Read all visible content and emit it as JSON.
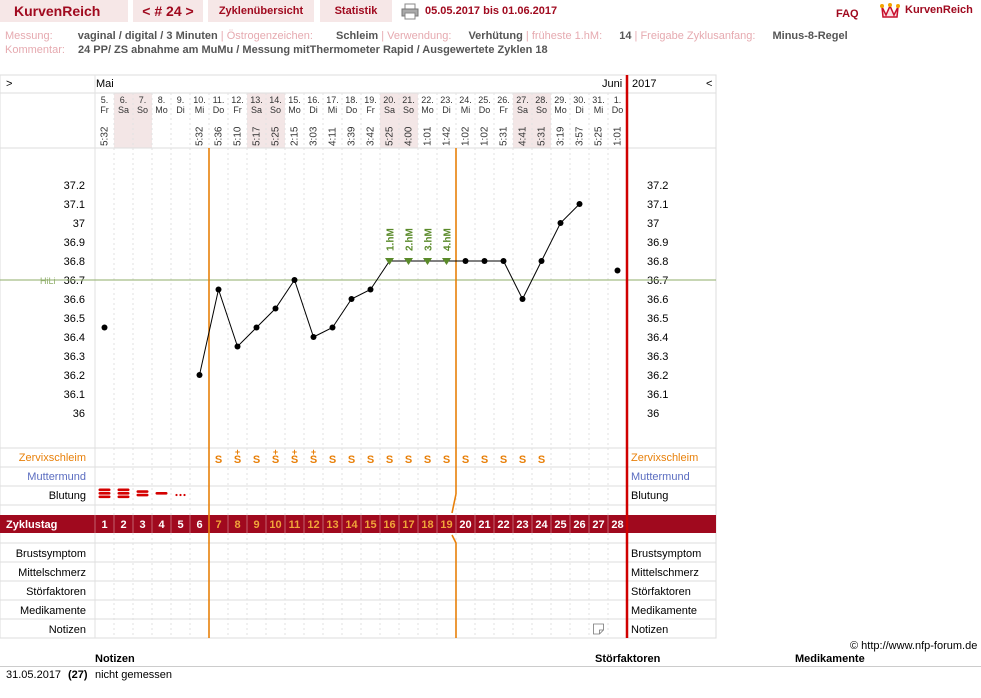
{
  "header": {
    "brand": "KurvenReich",
    "cycle_nav": "< # 24 >",
    "tab_overview": "Zyklenübersicht",
    "tab_stats": "Statistik",
    "date_range": "05.05.2017 bis 01.06.2017",
    "faq": "FAQ",
    "logo_text": "KurvenReich"
  },
  "info": {
    "messung_label": "Messung:",
    "messung_value": "vaginal / digital / 3 Minuten",
    "oestrogen_label": "Östrogenzeichen:",
    "oestrogen_value": "Schleim",
    "verwendung_label": "Verwendung:",
    "verwendung_value": "Verhütung",
    "hm_label": "früheste 1.hM:",
    "hm_value": "14",
    "freigabe_label": "Freigabe Zyklusanfang:",
    "freigabe_value": "Minus-8-Regel",
    "kommentar_label": "Kommentar:",
    "kommentar_value": "24 PP/ ZS abnahme am MuMu / Messung mitThermometer Rapid / Ausgewertete Zyklen 18"
  },
  "chart": {
    "nav_left": ">",
    "nav_right": "<",
    "month_start": "Mai",
    "month_end": "Juni",
    "year": "2017",
    "hili": "HiLi",
    "y_ticks": [
      "37.2",
      "37.1",
      "37",
      "36.9",
      "36.8",
      "36.7",
      "36.6",
      "36.5",
      "36.4",
      "36.3",
      "36.2",
      "36.1",
      "36"
    ],
    "days": [
      {
        "d": "5.",
        "w": "Fr",
        "t": "5:32",
        "we": false
      },
      {
        "d": "6.",
        "w": "Sa",
        "t": "",
        "we": true
      },
      {
        "d": "7.",
        "w": "So",
        "t": "",
        "we": true
      },
      {
        "d": "8.",
        "w": "Mo",
        "t": "",
        "we": false
      },
      {
        "d": "9.",
        "w": "Di",
        "t": "",
        "we": false
      },
      {
        "d": "10.",
        "w": "Mi",
        "t": "5:32",
        "we": false
      },
      {
        "d": "11.",
        "w": "Do",
        "t": "5:36",
        "we": false
      },
      {
        "d": "12.",
        "w": "Fr",
        "t": "5:10",
        "we": false
      },
      {
        "d": "13.",
        "w": "Sa",
        "t": "5:17",
        "we": true
      },
      {
        "d": "14.",
        "w": "So",
        "t": "5:25",
        "we": true
      },
      {
        "d": "15.",
        "w": "Mo",
        "t": "2:15",
        "we": false
      },
      {
        "d": "16.",
        "w": "Di",
        "t": "3:03",
        "we": false
      },
      {
        "d": "17.",
        "w": "Mi",
        "t": "4:11",
        "we": false
      },
      {
        "d": "18.",
        "w": "Do",
        "t": "3:39",
        "we": false
      },
      {
        "d": "19.",
        "w": "Fr",
        "t": "3:42",
        "we": false
      },
      {
        "d": "20.",
        "w": "Sa",
        "t": "5:25",
        "we": true
      },
      {
        "d": "21.",
        "w": "So",
        "t": "4:00",
        "we": true
      },
      {
        "d": "22.",
        "w": "Mo",
        "t": "1:01",
        "we": false
      },
      {
        "d": "23.",
        "w": "Di",
        "t": "1:42",
        "we": false
      },
      {
        "d": "24.",
        "w": "Mi",
        "t": "1:02",
        "we": false
      },
      {
        "d": "25.",
        "w": "Do",
        "t": "1:02",
        "we": false
      },
      {
        "d": "26.",
        "w": "Fr",
        "t": "5:31",
        "we": false
      },
      {
        "d": "27.",
        "w": "Sa",
        "t": "4:41",
        "we": true
      },
      {
        "d": "28.",
        "w": "So",
        "t": "5:31",
        "we": true
      },
      {
        "d": "29.",
        "w": "Mo",
        "t": "3:19",
        "we": false
      },
      {
        "d": "30.",
        "w": "Di",
        "t": "3:57",
        "we": false
      },
      {
        "d": "31.",
        "w": "Mi",
        "t": "5:25",
        "we": false
      },
      {
        "d": "1.",
        "w": "Do",
        "t": "1:01",
        "we": false
      }
    ],
    "temps": [
      36.45,
      null,
      null,
      null,
      null,
      36.2,
      36.65,
      36.35,
      36.45,
      36.55,
      36.7,
      36.4,
      36.45,
      36.6,
      36.65,
      36.8,
      36.8,
      36.8,
      36.8,
      36.8,
      36.8,
      36.8,
      36.6,
      36.8,
      37.0,
      37.1,
      null,
      36.75
    ],
    "hm_markers": [
      {
        "day": 16,
        "label": "1.hM"
      },
      {
        "day": 17,
        "label": "2.hM"
      },
      {
        "day": 18,
        "label": "3.hM"
      },
      {
        "day": 19,
        "label": "4.hM"
      }
    ],
    "mucus": [
      "",
      "",
      "",
      "",
      "",
      "",
      "S",
      "S+",
      "S",
      "S+",
      "S+",
      "S+",
      "S",
      "S",
      "S",
      "S",
      "S",
      "S",
      "S",
      "S",
      "S",
      "S",
      "S",
      "S",
      "",
      "",
      "",
      ""
    ],
    "bleeding": [
      3,
      3,
      2,
      1,
      0.5,
      0,
      0,
      0,
      0,
      0,
      0,
      0,
      0,
      0,
      0,
      0,
      0,
      0,
      0,
      0,
      0,
      0,
      0,
      0,
      0,
      0,
      0,
      0
    ],
    "cycle_days": [
      "1",
      "2",
      "3",
      "4",
      "5",
      "6",
      "7",
      "8",
      "9",
      "10",
      "11",
      "12",
      "13",
      "14",
      "15",
      "16",
      "17",
      "18",
      "19",
      "20",
      "21",
      "22",
      "23",
      "24",
      "25",
      "26",
      "27",
      "28"
    ],
    "row_labels": {
      "zervix": "Zervixschleim",
      "mumu": "Muttermund",
      "blutung": "Blutung",
      "zyklustag": "Zyklustag",
      "brust": "Brustsymptom",
      "mittel": "Mittelschmerz",
      "stoer": "Störfaktoren",
      "medi": "Medikamente",
      "notizen": "Notizen"
    },
    "copyright": "© http://www.nfp-forum.de"
  },
  "notes_table": {
    "col_notizen": "Notizen",
    "col_stoer": "Störfaktoren",
    "col_medi": "Medikamente",
    "rows": [
      {
        "date": "31.05.2017",
        "cycle_day": "(27)",
        "note": "nicht gemessen"
      }
    ]
  },
  "colors": {
    "accent": "#a0091e",
    "orange": "#e8800a",
    "green": "#5a8a2a",
    "weekend": "#f3e6e6"
  }
}
